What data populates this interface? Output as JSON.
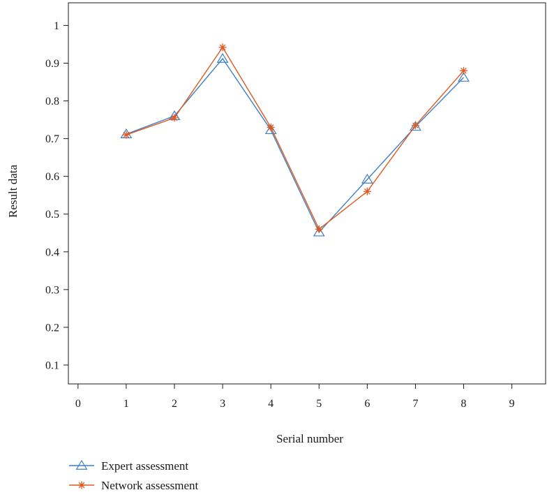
{
  "chart_data": {
    "type": "line",
    "title": "",
    "xlabel": "Serial number",
    "ylabel": "Result data",
    "xlim": [
      -0.2,
      9.7
    ],
    "ylim": [
      0.05,
      1.06
    ],
    "x_ticks": [
      0,
      1,
      2,
      3,
      4,
      5,
      6,
      7,
      8,
      9
    ],
    "y_ticks": [
      0.1,
      0.2,
      0.3,
      0.4,
      0.5,
      0.6,
      0.7,
      0.8,
      0.9,
      1
    ],
    "x_tick_labels": [
      "0",
      "1",
      "2",
      "3",
      "4",
      "5",
      "6",
      "7",
      "8",
      "9"
    ],
    "y_tick_labels": [
      "0.1",
      "0.2",
      "0.3",
      "0.4",
      "0.5",
      "0.6",
      "0.7",
      "0.8",
      "0.9",
      "1"
    ],
    "grid": false,
    "legend_position": "bottom-left",
    "x": [
      1,
      2,
      3,
      4,
      5,
      6,
      7,
      8
    ],
    "series": [
      {
        "name": "Expert assessment",
        "color": "#3d7fc4",
        "marker": "triangle",
        "values": [
          0.712,
          0.76,
          0.912,
          0.723,
          0.452,
          0.592,
          0.732,
          0.862
        ]
      },
      {
        "name": "Network assessment",
        "color": "#e0581e",
        "marker": "asterisk",
        "values": [
          0.71,
          0.755,
          0.942,
          0.73,
          0.46,
          0.56,
          0.735,
          0.88
        ]
      }
    ]
  }
}
